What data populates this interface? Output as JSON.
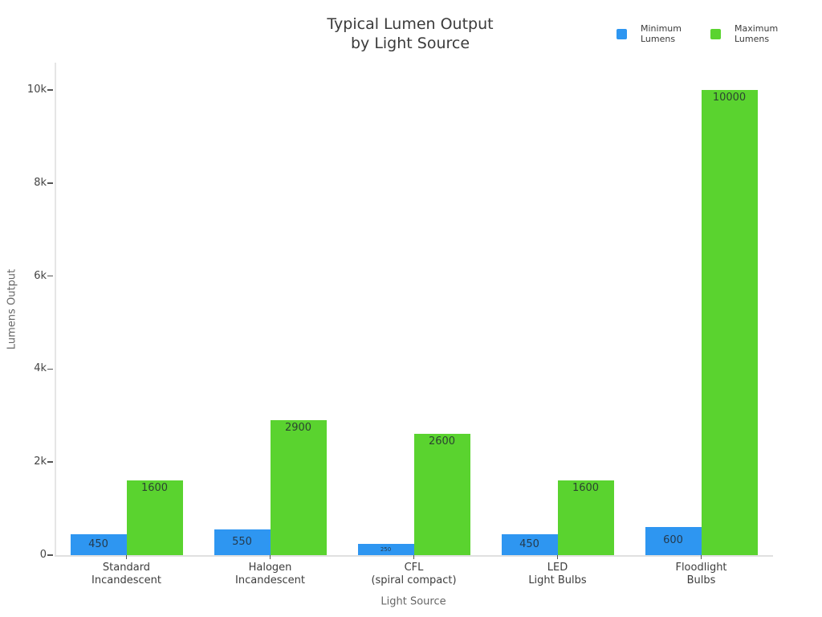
{
  "title": {
    "lines": [
      "Typical Lumen Output",
      "by Light Source"
    ]
  },
  "legend": {
    "items": [
      {
        "name": "Minimum Lumens",
        "lines": [
          "Minimum",
          "Lumens"
        ],
        "color": "#2E96F1"
      },
      {
        "name": "Maximum Lumens",
        "lines": [
          "Maximum",
          "Lumens"
        ],
        "color": "#5AD32F"
      }
    ]
  },
  "axes": {
    "y": {
      "title": "Lumens Output",
      "range": [
        0,
        10000
      ],
      "ticks": [
        {
          "value": 0,
          "label": "0"
        },
        {
          "value": 2000,
          "label": "2k"
        },
        {
          "value": 4000,
          "label": "4k"
        },
        {
          "value": 6000,
          "label": "6k"
        },
        {
          "value": 8000,
          "label": "8k"
        },
        {
          "value": 10000,
          "label": "10k"
        }
      ]
    },
    "x": {
      "title": "Light Source"
    }
  },
  "chart_data": {
    "type": "bar",
    "title": "Typical Lumen Output by Light Source",
    "xlabel": "Light Source",
    "ylabel": "Lumens Output",
    "ylim": [
      0,
      10000
    ],
    "grid": false,
    "legend_position": "top-right",
    "bar_value_labels": true,
    "categories": [
      [
        "Standard",
        "Incandescent"
      ],
      [
        "Halogen",
        "Incandescent"
      ],
      [
        "CFL",
        "(spiral compact)"
      ],
      [
        "LED",
        "Light Bulbs"
      ],
      [
        "Floodlight",
        "Bulbs"
      ]
    ],
    "series": [
      {
        "name": "Minimum Lumens",
        "color": "#2E96F1",
        "values": [
          450,
          550,
          250,
          450,
          600
        ]
      },
      {
        "name": "Maximum Lumens",
        "color": "#5AD32F",
        "values": [
          1600,
          2900,
          2600,
          1600,
          10000
        ]
      }
    ]
  },
  "colors": {
    "background": "#ffffff",
    "axis_line": "#e5e5e5",
    "tick_mark": "#555555",
    "tick_label": "#444444",
    "category_label": "#3d3d3d",
    "axis_title": "#666666",
    "title": "#3b3b3b"
  }
}
